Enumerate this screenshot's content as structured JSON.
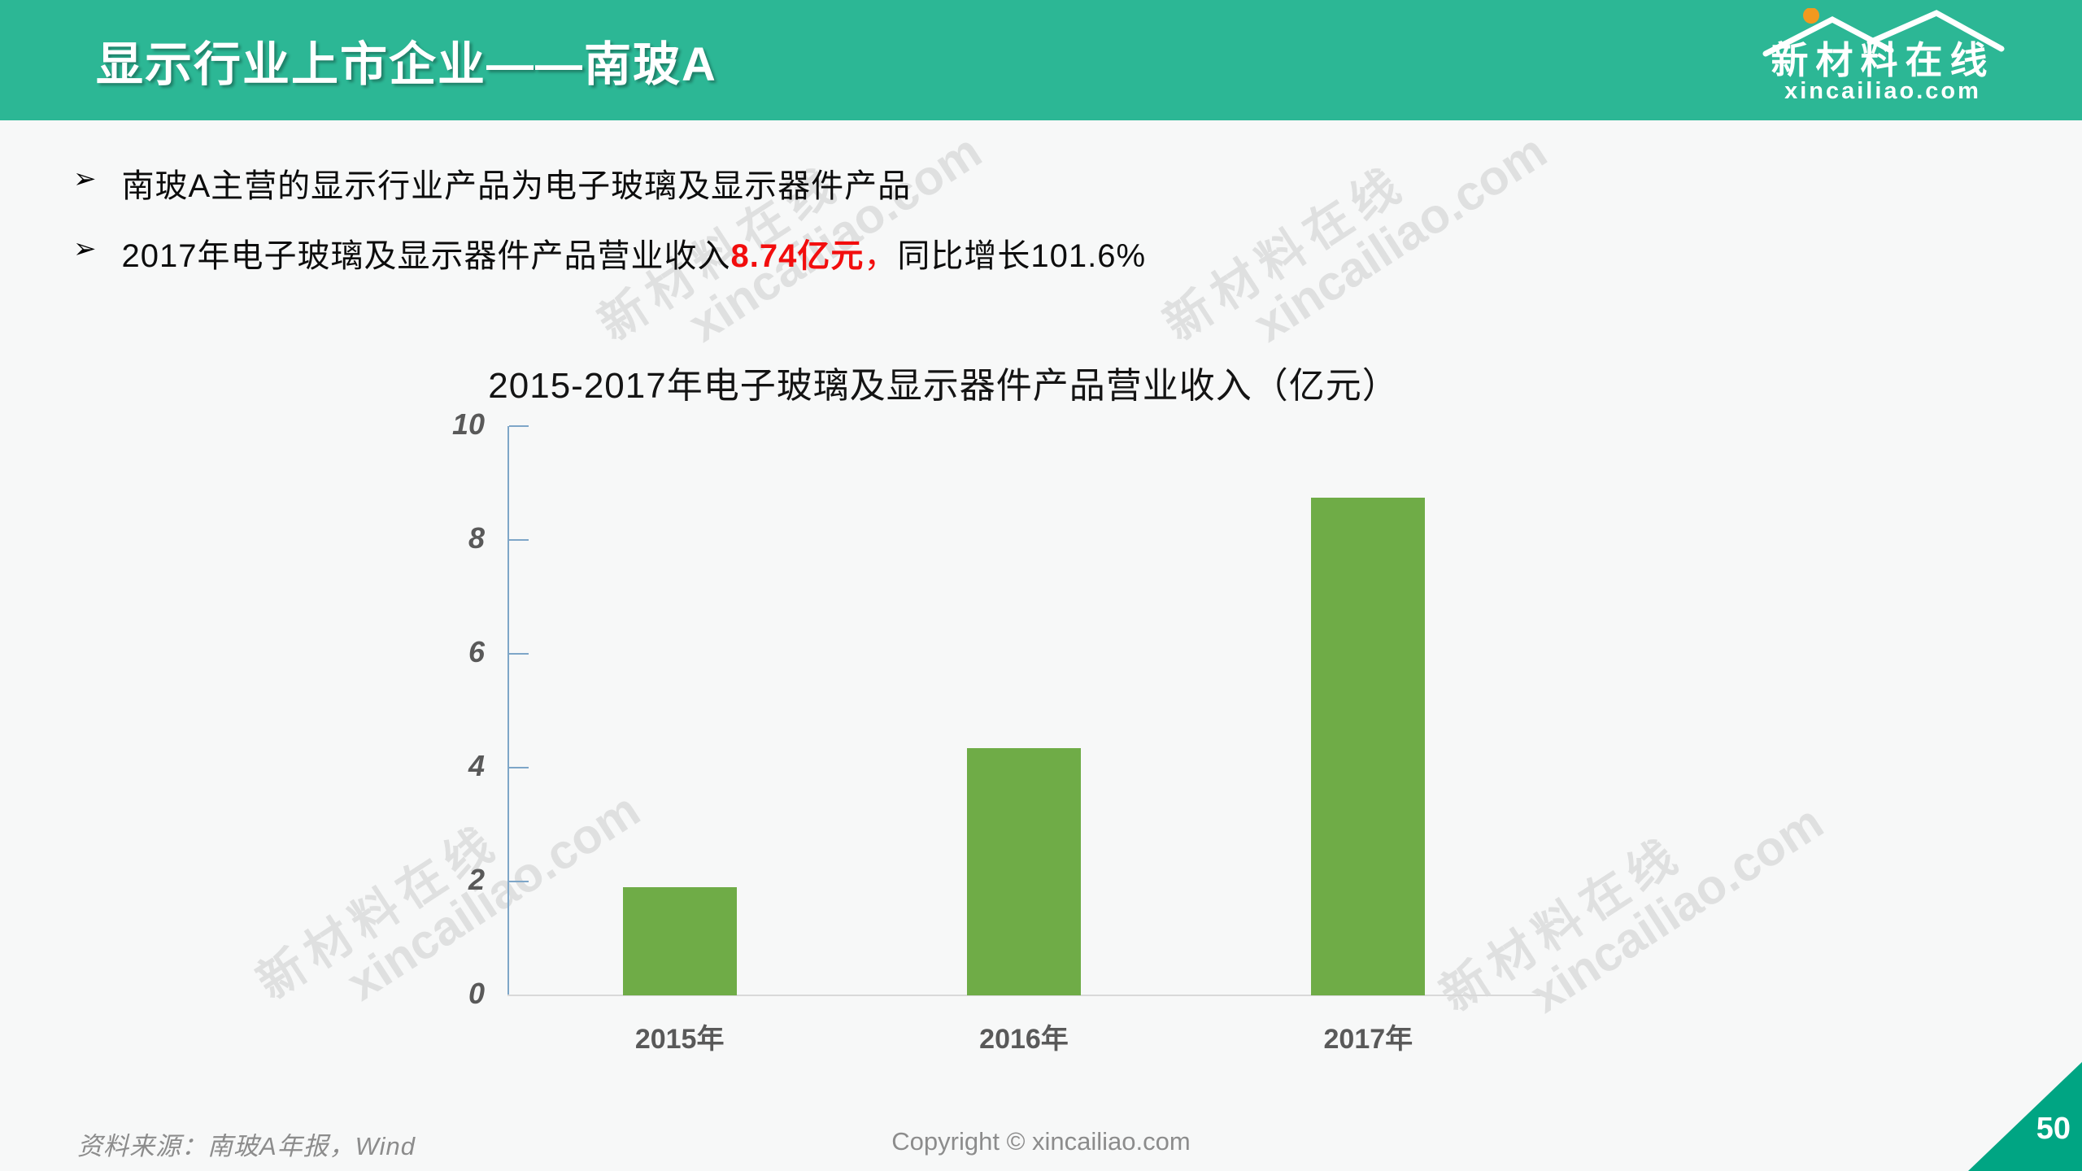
{
  "header": {
    "title": "显示行业上市企业——南玻A",
    "background_color": "#2CB795"
  },
  "logo": {
    "name": "新材料在线",
    "domain": "xincailiao.com",
    "dot_color": "#F2991F"
  },
  "bullets": {
    "marker": "➢",
    "item1": {
      "text": "南玻A主营的显示行业产品为电子玻璃及显示器件产品"
    },
    "item2": {
      "prefix": "2017年电子玻璃及显示器件产品营业收入",
      "highlight": "8.74亿元",
      "comma": "，",
      "suffix": "同比增长101.6%"
    }
  },
  "chart_data": {
    "type": "bar",
    "title": "2015-2017年电子玻璃及显示器件产品营业收入（亿元）",
    "categories": [
      "2015年",
      "2016年",
      "2017年"
    ],
    "values": [
      1.9,
      4.34,
      8.74
    ],
    "xlabel": "",
    "ylabel": "",
    "ylim": [
      0,
      10
    ],
    "yticks": [
      0,
      2,
      4,
      6,
      8,
      10
    ],
    "grid": false,
    "legend": "none",
    "bar_color": "#6FAC47",
    "axis_color": "#7EA6C8",
    "baseline_color": "#D9D9D9",
    "tick_label_color": "#595959"
  },
  "watermark": {
    "line1": "新材料在线",
    "line2": "xincailiao.com"
  },
  "footer": {
    "source": "资料来源：南玻A年报，Wind",
    "copyright": "Copyright © xincailiao.com",
    "page_number": "50",
    "corner_color": "#00A583"
  }
}
